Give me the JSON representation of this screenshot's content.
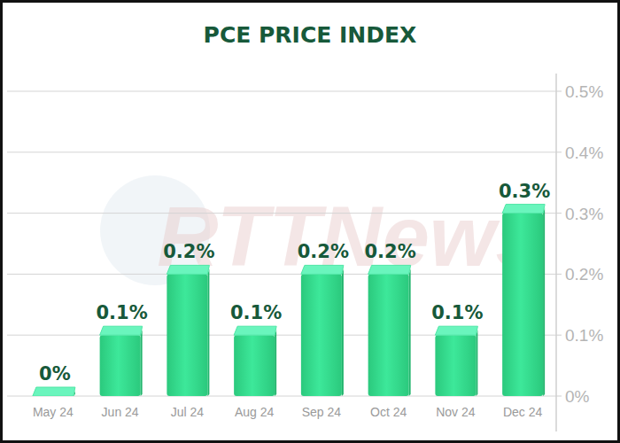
{
  "chart_data": {
    "type": "bar",
    "title": "PCE PRICE INDEX",
    "annotations": [
      "RTTNews"
    ],
    "categories": [
      "May 24",
      "Jun 24",
      "Jul 24",
      "Aug 24",
      "Sep 24",
      "Oct 24",
      "Nov 24",
      "Dec 24"
    ],
    "values": [
      0,
      0.1,
      0.2,
      0.1,
      0.2,
      0.2,
      0.1,
      0.3
    ],
    "value_labels": [
      "0%",
      "0.1%",
      "0.2%",
      "0.1%",
      "0.2%",
      "0.2%",
      "0.1%",
      "0.3%"
    ],
    "color": "#3de89a",
    "ylim": [
      0,
      0.5
    ],
    "yticks": [
      {
        "value": 0,
        "label": "0%"
      },
      {
        "value": 0.1,
        "label": "0.1%"
      },
      {
        "value": 0.2,
        "label": "0.2%"
      },
      {
        "value": 0.3,
        "label": "0.3%"
      },
      {
        "value": 0.4,
        "label": "0.4%"
      },
      {
        "value": 0.5,
        "label": "0.5%"
      }
    ],
    "grid": true,
    "data_labels": true
  }
}
